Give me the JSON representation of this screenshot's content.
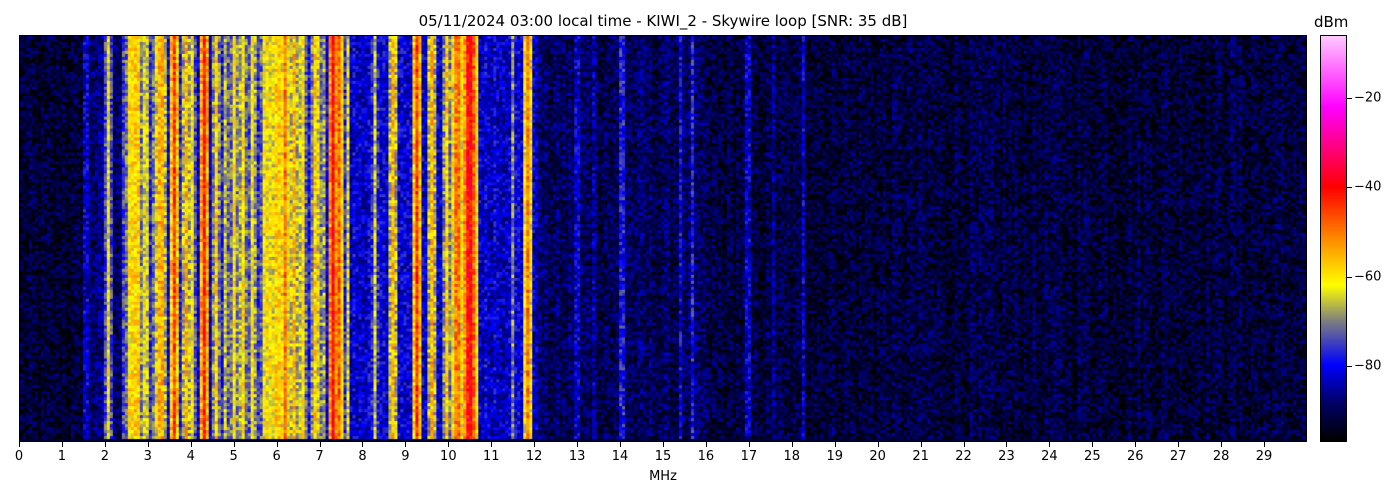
{
  "chart_data": {
    "type": "heatmap",
    "title": "05/11/2024 03:00 local time - KIWI_2 - Skywire loop [SNR: 35 dB]",
    "xlabel": "MHz",
    "xlim": [
      0,
      30
    ],
    "xticks": [
      0,
      1,
      2,
      3,
      4,
      5,
      6,
      7,
      8,
      9,
      10,
      11,
      12,
      13,
      14,
      15,
      16,
      17,
      18,
      19,
      20,
      21,
      22,
      23,
      24,
      25,
      26,
      27,
      28,
      29
    ],
    "colorbar": {
      "label": "dBm",
      "range": [
        -97,
        -6
      ],
      "ticks": [
        -20,
        -40,
        -60,
        -80
      ],
      "tick_labels": [
        "−20",
        "−40",
        "−60",
        "−80"
      ],
      "colormap": [
        [
          -97,
          "#000000"
        ],
        [
          -88,
          "#00006e"
        ],
        [
          -80,
          "#0000ff"
        ],
        [
          -70,
          "#808080"
        ],
        [
          -62,
          "#ffff00"
        ],
        [
          -52,
          "#ff9000"
        ],
        [
          -40,
          "#ff0000"
        ],
        [
          -22,
          "#ff00ff"
        ],
        [
          -6,
          "#ffc8ff"
        ]
      ]
    },
    "y_axis_ticks": "none (time, unlabeled)",
    "noise_regions_mhz_dbm": [
      [
        0,
        1.5,
        -93
      ],
      [
        1.5,
        2.4,
        -88
      ],
      [
        2.4,
        7.7,
        -72
      ],
      [
        7.7,
        12.1,
        -82
      ],
      [
        12.1,
        16,
        -90
      ],
      [
        16,
        30,
        -92
      ]
    ],
    "signals_mhz_dbm": [
      [
        1.55,
        -82
      ],
      [
        2.05,
        -62
      ],
      [
        2.6,
        -60
      ],
      [
        2.72,
        -58
      ],
      [
        3.3,
        -55
      ],
      [
        3.6,
        -45
      ],
      [
        3.9,
        -55
      ],
      [
        4.3,
        -42
      ],
      [
        4.6,
        -58
      ],
      [
        4.8,
        -65
      ],
      [
        5.0,
        -60
      ],
      [
        5.2,
        -60
      ],
      [
        5.4,
        -62
      ],
      [
        5.8,
        -62
      ],
      [
        6.0,
        -58
      ],
      [
        6.2,
        -50
      ],
      [
        6.4,
        -55
      ],
      [
        6.9,
        -58
      ],
      [
        7.3,
        -40
      ],
      [
        7.45,
        -48
      ],
      [
        8.3,
        -65
      ],
      [
        8.7,
        -55
      ],
      [
        9.25,
        -45
      ],
      [
        9.6,
        -55
      ],
      [
        9.95,
        -58
      ],
      [
        10.2,
        -50
      ],
      [
        10.5,
        -40
      ],
      [
        10.6,
        -48
      ],
      [
        11.5,
        -70
      ],
      [
        11.85,
        -50
      ],
      [
        13.0,
        -82
      ],
      [
        13.4,
        -84
      ],
      [
        14.05,
        -78
      ],
      [
        15.4,
        -80
      ],
      [
        15.7,
        -78
      ],
      [
        17.0,
        -82
      ],
      [
        17.6,
        -86
      ],
      [
        18.3,
        -82
      ]
    ]
  }
}
